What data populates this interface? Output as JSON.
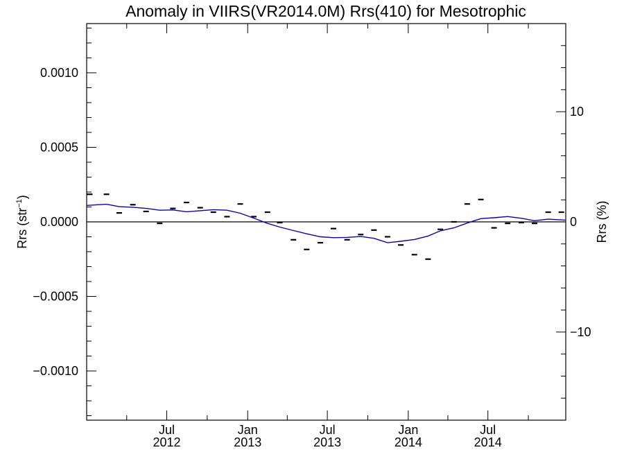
{
  "chart_data": {
    "type": "scatter",
    "title": "Anomaly in VIIRS(VR2014.0M) Rrs(410) for Mesotrophic",
    "ylabel_left": "Rrs (str",
    "ylabel_left_sup": "−1",
    "ylabel_left_end": ")",
    "ylabel_right": "Rrs (%)",
    "ylim_left": [
      -0.00133,
      0.00133
    ],
    "ylim_right": [
      -18,
      18
    ],
    "xlim": [
      "2012-01-01",
      "2014-12-25"
    ],
    "left_ticks": [
      {
        "value": 0.001,
        "label": "0.0010"
      },
      {
        "value": 0.0005,
        "label": "0.0005"
      },
      {
        "value": 0.0,
        "label": "0.0000"
      },
      {
        "value": -0.0005,
        "label": "−0.0005"
      },
      {
        "value": -0.001,
        "label": "−0.0010"
      }
    ],
    "right_ticks": [
      {
        "value": 10,
        "label": "10"
      },
      {
        "value": 0,
        "label": "0"
      },
      {
        "value": -10,
        "label": "−10"
      }
    ],
    "x_ticks": [
      {
        "date": "2012-07-01",
        "month": "Jul",
        "year": "2012"
      },
      {
        "date": "2013-01-01",
        "month": "Jan",
        "year": "2013"
      },
      {
        "date": "2013-07-01",
        "month": "Jul",
        "year": "2013"
      },
      {
        "date": "2014-01-01",
        "month": "Jan",
        "year": "2014"
      },
      {
        "date": "2014-07-01",
        "month": "Jul",
        "year": "2014"
      }
    ],
    "minor_x_ticks": [
      "2012-04-01",
      "2012-10-01",
      "2013-04-01",
      "2013-10-01",
      "2014-04-01",
      "2014-10-01"
    ],
    "zero_line": 0,
    "series": [
      {
        "marker": "dash",
        "color": "#000000",
        "points": [
          {
            "x": "2012-01-08",
            "y": 0.000185
          },
          {
            "x": "2012-02-15",
            "y": 0.000185
          },
          {
            "x": "2012-03-15",
            "y": 6e-05
          },
          {
            "x": "2012-04-15",
            "y": 0.000115
          },
          {
            "x": "2012-05-15",
            "y": 7e-05
          },
          {
            "x": "2012-06-15",
            "y": -1e-05
          },
          {
            "x": "2012-07-15",
            "y": 9e-05
          },
          {
            "x": "2012-08-15",
            "y": 0.00013
          },
          {
            "x": "2012-09-15",
            "y": 9.5e-05
          },
          {
            "x": "2012-10-15",
            "y": 6.5e-05
          },
          {
            "x": "2012-11-15",
            "y": 3.5e-05
          },
          {
            "x": "2012-12-15",
            "y": 0.00012
          },
          {
            "x": "2013-01-15",
            "y": 3.5e-05
          },
          {
            "x": "2013-02-15",
            "y": 6.5e-05
          },
          {
            "x": "2013-03-15",
            "y": -5e-06
          },
          {
            "x": "2013-04-15",
            "y": -0.00012
          },
          {
            "x": "2013-05-15",
            "y": -0.000185
          },
          {
            "x": "2013-06-15",
            "y": -0.00014
          },
          {
            "x": "2013-07-15",
            "y": -4.5e-05
          },
          {
            "x": "2013-08-15",
            "y": -0.00012
          },
          {
            "x": "2013-09-15",
            "y": -8.5e-05
          },
          {
            "x": "2013-10-15",
            "y": -5.5e-05
          },
          {
            "x": "2013-11-15",
            "y": -0.0001
          },
          {
            "x": "2013-12-15",
            "y": -0.000155
          },
          {
            "x": "2014-01-15",
            "y": -0.00022
          },
          {
            "x": "2014-02-15",
            "y": -0.00025
          },
          {
            "x": "2014-03-15",
            "y": -5e-05
          },
          {
            "x": "2014-04-15",
            "y": 0.0
          },
          {
            "x": "2014-05-15",
            "y": 0.00012
          },
          {
            "x": "2014-06-15",
            "y": 0.00015
          },
          {
            "x": "2014-07-15",
            "y": -4e-05
          },
          {
            "x": "2014-08-15",
            "y": -1e-05
          },
          {
            "x": "2014-09-15",
            "y": -5e-06
          },
          {
            "x": "2014-10-15",
            "y": -1e-05
          },
          {
            "x": "2014-11-15",
            "y": 6.5e-05
          },
          {
            "x": "2014-12-15",
            "y": 6.5e-05
          }
        ]
      },
      {
        "marker": "line",
        "color": "#0000cc",
        "points": [
          {
            "x": "2012-01-01",
            "y": 0.00011
          },
          {
            "x": "2012-02-15",
            "y": 0.000118
          },
          {
            "x": "2012-03-15",
            "y": 0.000102
          },
          {
            "x": "2012-04-15",
            "y": 9.8e-05
          },
          {
            "x": "2012-05-15",
            "y": 9e-05
          },
          {
            "x": "2012-06-15",
            "y": 7.8e-05
          },
          {
            "x": "2012-07-15",
            "y": 8e-05
          },
          {
            "x": "2012-08-15",
            "y": 6.8e-05
          },
          {
            "x": "2012-09-15",
            "y": 7.5e-05
          },
          {
            "x": "2012-10-15",
            "y": 8.2e-05
          },
          {
            "x": "2012-11-15",
            "y": 7.8e-05
          },
          {
            "x": "2012-12-15",
            "y": 5.8e-05
          },
          {
            "x": "2013-01-15",
            "y": 2.5e-05
          },
          {
            "x": "2013-02-15",
            "y": -1e-05
          },
          {
            "x": "2013-03-15",
            "y": -3.5e-05
          },
          {
            "x": "2013-04-15",
            "y": -5.8e-05
          },
          {
            "x": "2013-05-15",
            "y": -8e-05
          },
          {
            "x": "2013-06-15",
            "y": -0.0001
          },
          {
            "x": "2013-07-15",
            "y": -0.000106
          },
          {
            "x": "2013-08-15",
            "y": -0.000104
          },
          {
            "x": "2013-09-15",
            "y": -9.8e-05
          },
          {
            "x": "2013-10-15",
            "y": -0.00011
          },
          {
            "x": "2013-11-15",
            "y": -0.00014
          },
          {
            "x": "2013-12-15",
            "y": -0.00013
          },
          {
            "x": "2014-01-15",
            "y": -0.000118
          },
          {
            "x": "2014-02-15",
            "y": -9.5e-05
          },
          {
            "x": "2014-03-15",
            "y": -6e-05
          },
          {
            "x": "2014-04-15",
            "y": -4e-05
          },
          {
            "x": "2014-05-15",
            "y": -8e-06
          },
          {
            "x": "2014-06-15",
            "y": 2.2e-05
          },
          {
            "x": "2014-07-15",
            "y": 2.8e-05
          },
          {
            "x": "2014-08-15",
            "y": 3.6e-05
          },
          {
            "x": "2014-09-15",
            "y": 2.4e-05
          },
          {
            "x": "2014-10-15",
            "y": 8e-06
          },
          {
            "x": "2014-11-15",
            "y": 1.8e-05
          },
          {
            "x": "2014-12-25",
            "y": 1.2e-05
          }
        ]
      }
    ]
  }
}
